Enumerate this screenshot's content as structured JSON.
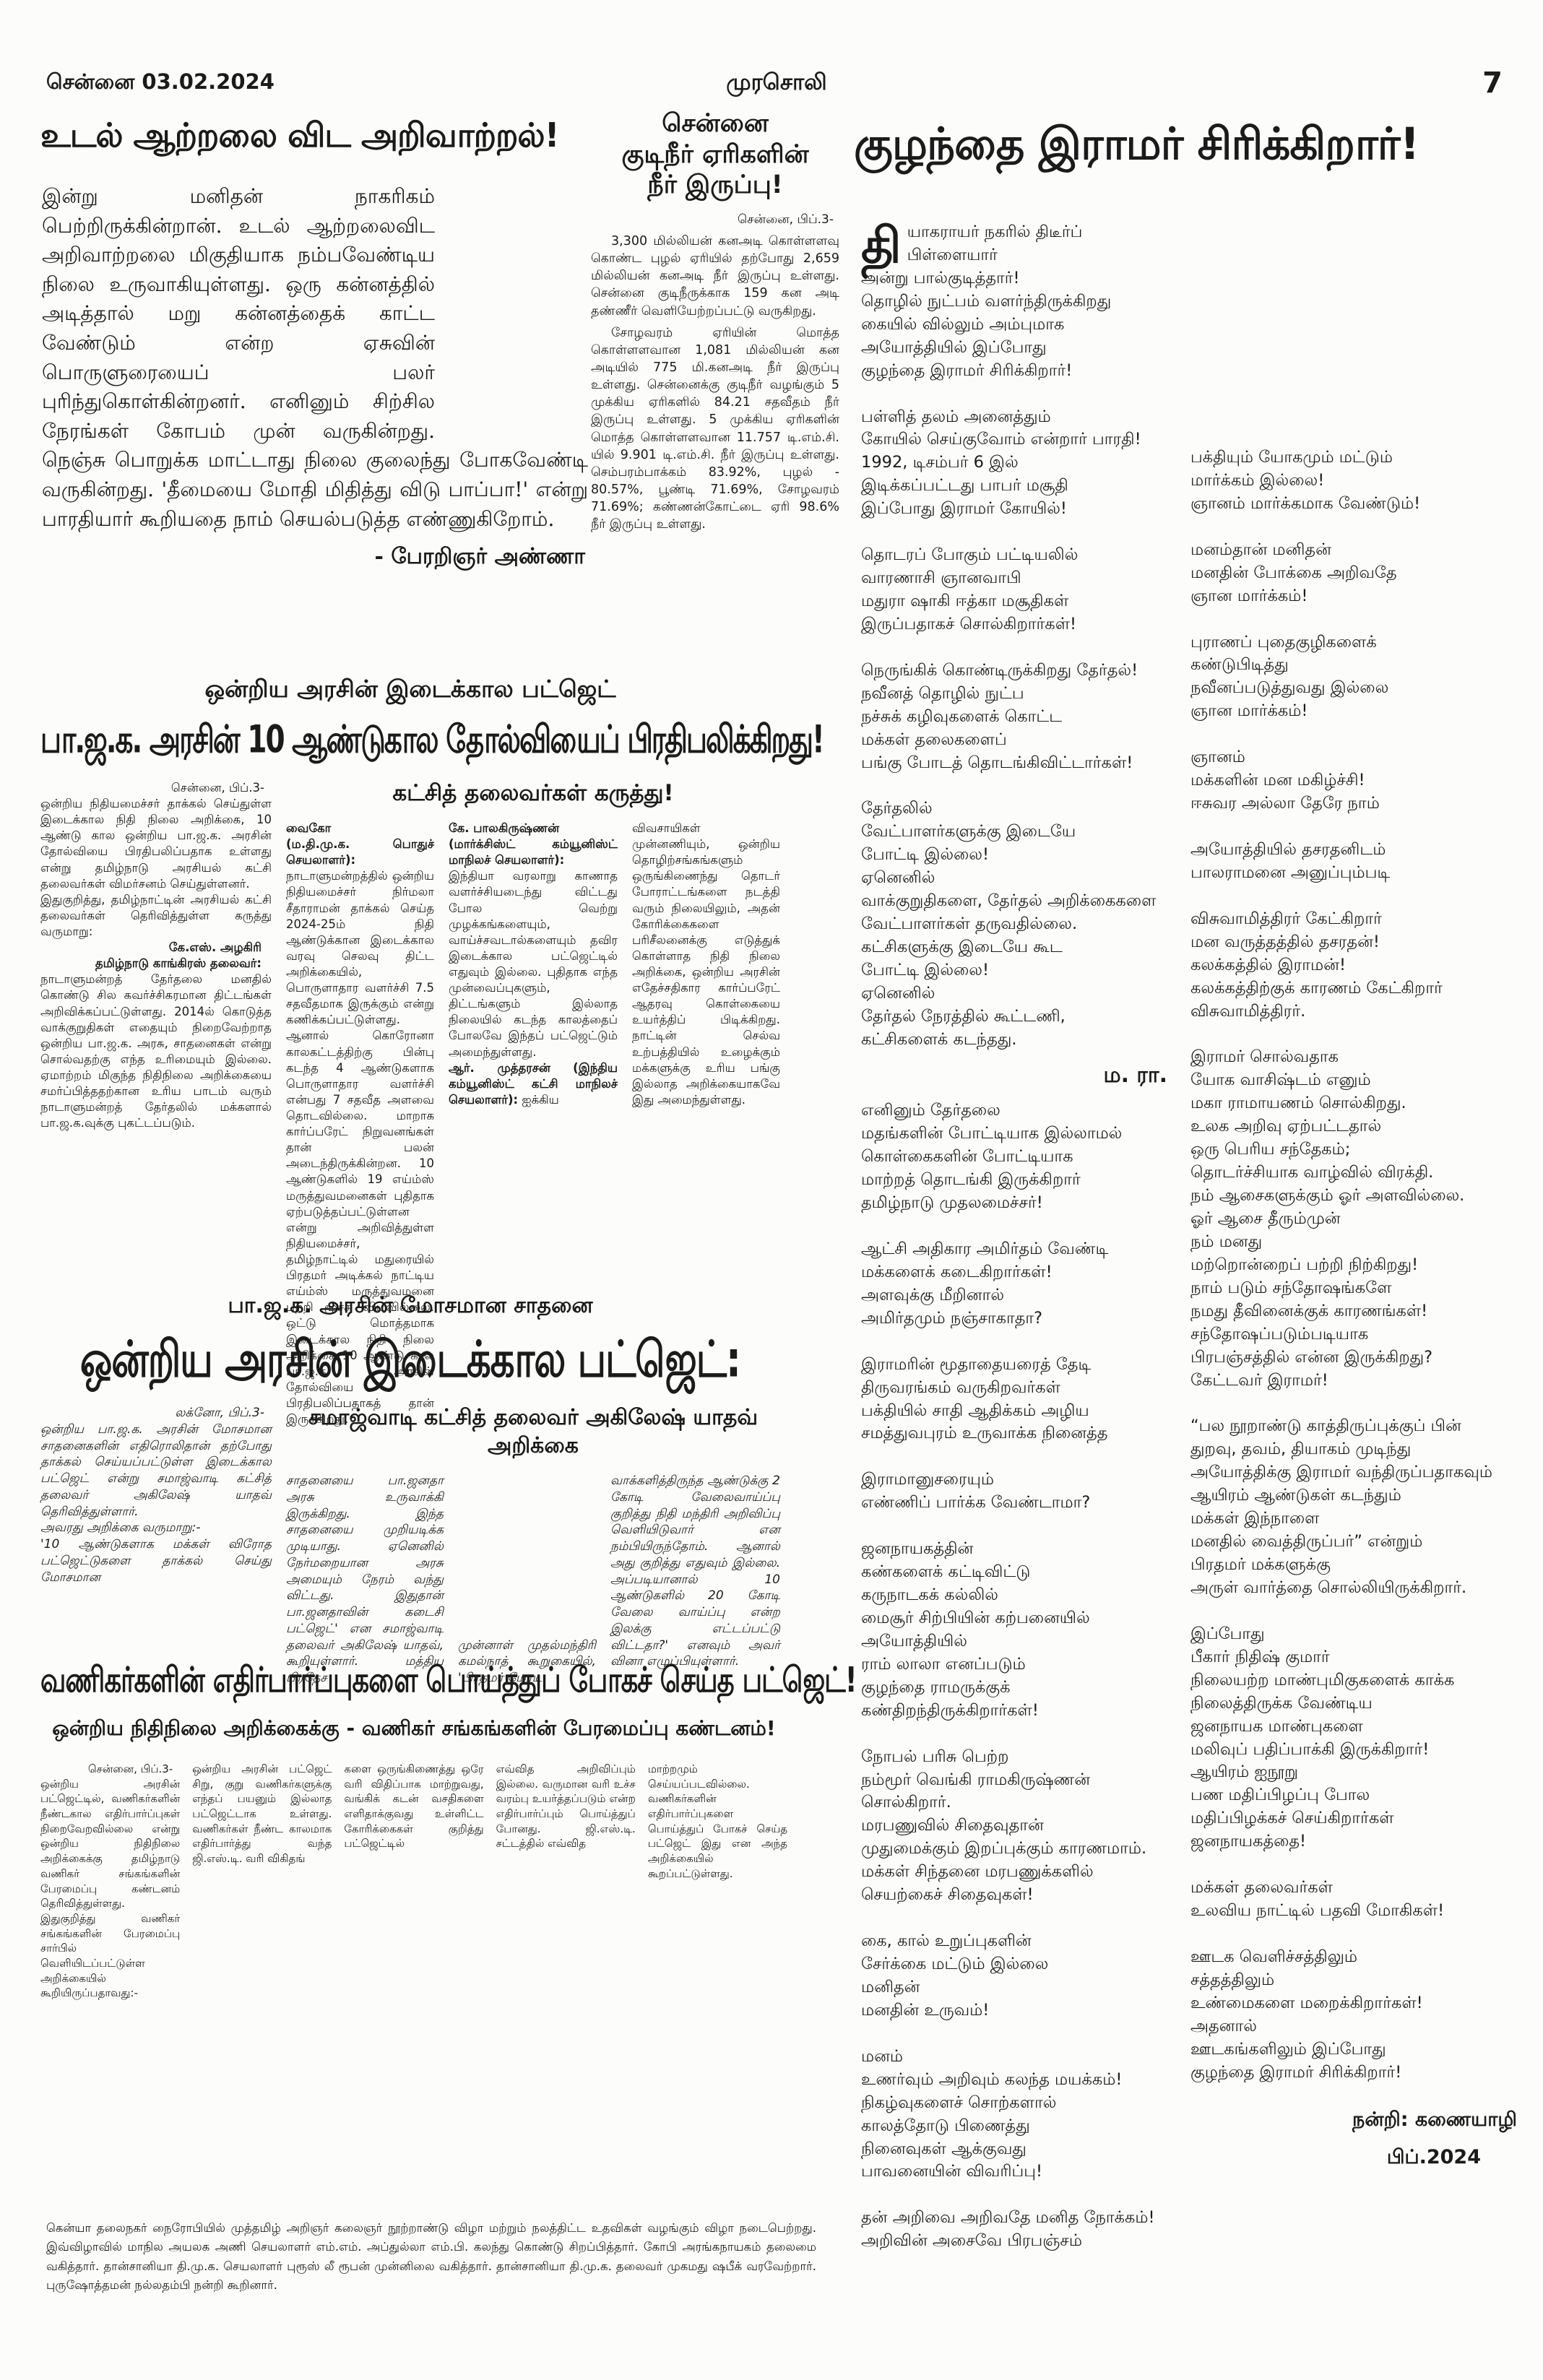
{
  "header": {
    "city_date": "சென்னை  03.02.2024",
    "masthead": "முரசொலி",
    "page_number": "7"
  },
  "editorial": {
    "headline": "உடல் ஆற்றலை விட அறிவாற்றல்!",
    "body": "இன்று மனிதன் நாகரிகம் பெற்றிருக்கின்றான். உடல் ஆற்றலைவிட அறிவாற்றலை மிகுதியாக நம்பவேண்டிய நிலை உருவாகியுள்ளது. ஒரு கன்னத்தில் அடித்தால் மறு கன்னத்தைக் காட்ட வேண்டும் என்ற ஏசுவின் பொருளுரையைப் பலர் புரிந்துகொள்கின்றனர். எனினும் சிற்சில நேரங்கள் கோபம் முன் வருகின்றது. நெஞ்சு பொறுக்க மாட்டாது நிலை குலைந்து போகவேண்டி வருகின்றது. 'தீமையை மோதி மிதித்து விடு பாப்பா!' என்று பாரதியார் கூறியதை நாம் செயல்படுத்த எண்ணுகிறோம்.",
    "byline": "- பேரறிஞர் அண்ணா"
  },
  "water": {
    "headline": "சென்னை\nகுடிநீர் ஏரிகளின்\nநீர் இருப்பு!",
    "dateline": "சென்னை, பிப்.3-",
    "para1": "3,300 மில்லியன் கனஅடி கொள்ளளவு கொண்ட புழல் ஏரியில் தற்போது 2,659 மில்லியன் கனஅடி நீர் இருப்பு உள்ளது. சென்னை குடிநீருக்காக 159 கன அடி தண்ணீர் வெளியேற்றப்பட்டு வருகிறது.",
    "para2": "சோழவரம் ஏரியின் மொத்த கொள்ளளவான 1,081 மில்லியன் கன அடியில் 775 மி.கனஅடி நீர் இருப்பு உள்ளது. சென்னைக்கு குடிநீர் வழங்கும் 5 முக்கிய ஏரிகளில் 84.21 சதவீதம் நீர் இருப்பு உள்ளது. 5 முக்கிய ஏரிகளின் மொத்த கொள்ளளவான 11.757 டி.எம்.சி. யில் 9.901 டி.எம்.சி. நீர் இருப்பு உள்ளது. செம்பரம்பாக்கம் 83.92%, புழல் - 80.57%, பூண்டி 71.69%, சோழவரம் 71.69%; கண்ணன்கோட்டை ஏரி 98.6% நீர் இருப்பு உள்ளது."
  },
  "poem": {
    "headline": "குழந்தை இராமர் சிரிக்கிறார்!",
    "col1_drop": "தி",
    "col1_a": "யாகராயர் நகரில் திடீர்ப் பிள்ளையார்\nஅன்று பால்குடித்தார்!\nதொழில் நுட்பம் வளர்ந்திருக்கிறது\nகையில் வில்லும் அம்புமாக\nஅயோத்தியில் இப்போது\nகுழந்தை இராமர் சிரிக்கிறார்!\n\nபள்ளித் தலம் அனைத்தும்\nகோயில் செய்குவோம் என்றார் பாரதி!\n1992, டிசம்பர் 6 இல்\nஇடிக்கப்பட்டது பாபர் மசூதி\nஇப்போது இராமர் கோயில்!\n\nதொடரப் போகும் பட்டியலில்\nவாரணாசி ஞானவாபி\nமதுரா ஷாகி ஈத்கா மசூதிகள்\nஇருப்பதாகச் சொல்கிறார்கள்!\n\nநெருங்கிக் கொண்டிருக்கிறது தேர்தல்!\nநவீனத் தொழில் நுட்ப\nநச்சுக் கழிவுகளைக் கொட்ட\nமக்கள் தலைகளைப்\nபங்கு போடத் தொடங்கிவிட்டார்கள்!\n\nதேர்தலில்\nவேட்பாளர்களுக்கு இடையே\nபோட்டி இல்லை!\nஏனெனில்\nவாக்குறுதிகளை, தேர்தல் அறிக்கைகளை\nவேட்பாளர்கள் தருவதில்லை.\nகட்சிகளுக்கு இடையே கூட\nபோட்டி இல்லை!\nஏனெனில்\nதேர்தல் நேரத்தில் கூட்டணி,\nகட்சிகளைக் கடந்தது.",
    "author_initials": "ம. ரா.",
    "col1_b": "எனினும் தேர்தலை\nமதங்களின் போட்டியாக இல்லாமல்\nகொள்கைகளின் போட்டியாக\nமாற்றத் தொடங்கி இருக்கிறார்\nதமிழ்நாடு முதலமைச்சர்!\n\nஆட்சி அதிகார அமிர்தம் வேண்டி\nமக்களைக் கடைகிறார்கள்!\nஅளவுக்கு மீறினால்\nஅமிர்தமும் நஞ்சாகாதா?\n\nஇராமரின் மூதாதையரைத் தேடி\nதிருவரங்கம் வருகிறவர்கள்\nபக்தியில் சாதி ஆதிக்கம் அழிய\nசமத்துவபுரம் உருவாக்க நினைத்த\n\nஇராமானுசரையும்\nஎண்ணிப் பார்க்க வேண்டாமா?\n\nஜனநாயகத்தின்\nகண்களைக் கட்டிவிட்டு\nகருநாடகக் கல்லில்\nமைசூர் சிற்பியின் கற்பனையில்\nஅயோத்தியில்\nராம் லாலா எனப்படும்\nகுழந்தை ராமருக்குக்\nகண்திறந்திருக்கிறார்கள்!\n\nநோபல் பரிசு பெற்ற\nநம்மூர் வெங்கி ராமகிருஷ்ணன்\nசொல்கிறார்.\nமரபணுவில் சிதைவுதான்\nமுதுமைக்கும் இறப்புக்கும் காரணமாம்.\nமக்கள் சிந்தனை மரபணுக்களில்\nசெயற்கைச் சிதைவுகள்!\n\nகை, கால் உறுப்புகளின்\nசேர்க்கை மட்டும் இல்லை\nமனிதன்\nமனதின் உருவம்!\n\nமனம்\nஉணர்வும் அறிவும் கலந்த மயக்கம்!\nநிகழ்வுகளைச் சொற்களால்\nகாலத்தோடு பிணைத்து\nநினைவுகள் ஆக்குவது\nபாவனையின் விவரிப்பு!\n\nதன் அறிவை அறிவதே மனித நோக்கம்!\nஅறிவின் அசைவே பிரபஞ்சம்",
    "col2": "பக்தியும் யோகமும் மட்டும்\nமார்க்கம் இல்லை!\nஞானம் மார்க்கமாக வேண்டும்!\n\nமனம்தான் மனிதன்\nமனதின் போக்கை அறிவதே\nஞான மார்க்கம்!\n\nபுராணப் புதைகுழிகளைக்\nகண்டுபிடித்து\nநவீனப்படுத்துவது இல்லை\nஞான மார்க்கம்!\n\nஞானம்\nமக்களின் மன மகிழ்ச்சி!\nஈசுவர அல்லா தேரே நாம்\n\nஅயோத்தியில் தசரதனிடம்\nபாலராமனை அனுப்பும்படி\n\nவிசுவாமித்திரர் கேட்கிறார்\nமன வருத்தத்தில் தசரதன்!\nகலக்கத்தில் இராமன்!\nகலக்கத்திற்குக் காரணம் கேட்கிறார்\nவிசுவாமித்திரர்.\n\nஇராமர் சொல்வதாக\nயோக வாசிஷ்டம் எனும்\nமகா ராமாயணம் சொல்கிறது.\nஉலக அறிவு ஏற்பட்டதால்\nஒரு பெரிய சந்தேகம்;\nதொடர்ச்சியாக வாழ்வில் விரக்தி.\nநம் ஆசைகளுக்கும் ஓர் அளவில்லை.\nஓர் ஆசை தீரும்முன்\nநம் மனது\nமற்றொன்றைப் பற்றி நிற்கிறது!\nநாம் படும் சந்தோஷங்களே\nநமது தீவினைக்குக் காரணங்கள்!\nசந்தோஷப்படும்படியாக\nபிரபஞ்சத்தில் என்ன இருக்கிறது?\nகேட்டவர் இராமர்!\n\n“பல நூறாண்டு காத்திருப்புக்குப் பின்\nதுறவு, தவம், தியாகம் முடிந்து\nஅயோத்திக்கு இராமர் வந்திருப்பதாகவும்\nஆயிரம் ஆண்டுகள் கடந்தும்\nமக்கள் இந்நாளை\nமனதில் வைத்திருப்பர்” என்றும்\nபிரதமர் மக்களுக்கு\nஅருள் வார்த்தை சொல்லியிருக்கிறார்.\n\nஇப்போது\nபீகார் நிதிஷ் குமார்\nநிலையற்ற மாண்புமிகுகளைக் காக்க\nநிலைத்திருக்க வேண்டிய\nஜனநாயக மாண்புகளை\nமலிவுப் பதிப்பாக்கி இருக்கிறார்!\nஆயிரம் ஐநூறு\nபண மதிப்பிழப்பு போல\nமதிப்பிழக்கச் செய்கிறார்கள்\nஜனநாயகத்தை!\n\nமக்கள் தலைவர்கள்\nஉலவிய நாட்டில் பதவி மோகிகள்!\n\nஊடக வெளிச்சத்திலும்\nசத்தத்திலும்\nஉண்மைகளை மறைக்கிறார்கள்!\nஅதனால்\nஊடகங்களிலும் இப்போது\nகுழந்தை இராமர் சிரிக்கிறார்!",
    "credit": "நன்றி: கணையாழி",
    "credit_date": "பிப்.2024"
  },
  "budget": {
    "kicker": "ஒன்றிய அரசின் இடைக்கால பட்ஜெட்",
    "headline": "பா.ஜ.க. அரசின் 10 ஆண்டுகால தோல்வியைப் பிரதிபலிக்கிறது!",
    "subhead": "கட்சித் தலைவர்கள் கருத்து!",
    "dateline": "சென்னை, பிப்.3-",
    "intro": "ஒன்றிய நிதியமைச்சர் தாக்கல் செய்துள்ள இடைக்கால நிதி நிலை அறிக்கை, 10 ஆண்டு கால ஒன்றிய பா.ஜ.க. அரசின் தோல்வியை பிரதிபலிப்பதாக உள்ளது என்று தமிழ்நாடு அரசியல் கட்சி தலைவர்கள் விமர்சனம் செய்துள்ளனர்.\nஇதுகுறித்து, தமிழ்நாட்டின் அரசியல் கட்சி தலைவர்கள் தெரிவித்துள்ள கருத்து வருமாறு:",
    "leader1_name": "கே.எஸ். அழகிரி",
    "leader1_role": "தமிழ்நாடு காங்கிரஸ் தலைவர்:",
    "leader1_text": "நாடாளுமன்றத் தேர்தலை மனதில் கொண்டு சில கவர்ச்சிகரமான திட்டங்கள் அறிவிக்கப்பட்டுள்ளது. 2014ல் கொடுத்த வாக்குறுதிகள் எதையும் நிறைவேற்றாத ஒன்றிய பா.ஜ.க. அரசு, சாதனைகள் என்று சொல்வதற்கு எந்த உரிமையும் இல்லை. ஏமாற்றம் மிகுந்த நிதிநிலை அறிக்கையை சமர்ப்பித்ததற்கான உரிய பாடம் வரும் நாடாளுமன்றத் தேர்தலில் மக்களால் பா.ஜ.க.வுக்கு புகட்டப்படும்.",
    "leader2_name": "வைகோ",
    "leader2_role": "(ம.தி.மு.க. பொதுச் செயலாளர்):",
    "leader2_text": "நாடாளுமன்றத்தில் ஒன்றிய நிதியமைச்சர் நிர்மலா சீதாராமன் தாக்கல் செய்த 2024-25ம் நிதி ஆண்டுக்கான இடைக்கால வரவு செலவு திட்ட அறிக்கையில், பொருளாதார வளர்ச்சி 7.5 சதவீதமாக இருக்கும் என்று கணிக்கப்பட்டுள்ளது. ஆனால் கொரோனா காலகட்டத்திற்கு பின்பு கடந்த 4 ஆண்டுகளாக பொருளாதார வளர்ச்சி என்பது 7 சதவீத அளவை தொடவில்லை. மாறாக கார்ப்பரேட் நிறுவனங்கள் தான் பலன் அடைந்திருக்கின்றன. 10 ஆண்டுகளில் 19 எய்ம்ஸ் மருத்துவமனைகள் புதிதாக ஏற்படுத்தப்பட்டுள்ளன என்று அறிவித்துள்ள நிதியமைச்சர், தமிழ்நாட்டில் மதுரையில் பிரதமர் அடிக்கல் நாட்டிய எய்ம்ஸ் மருத்துவமனை பற்றி மூச்சு விடவில்லை. ஒட்டு மொத்தமாக இடைக்கால நிதி நிலை அறிக்கை 10 ஆண்டு கால பா.ஜ.க. அரசின் தோல்வியை பிரதிபலிப்பதாகத் தான் இருக்கிறது.",
    "leader3_name": "கே. பாலகிருஷ்ணன்",
    "leader3_role": "(மார்க்சிஸ்ட் கம்யூனிஸ்ட் மாநிலச் செயலாளர்):",
    "leader3_text": "இந்தியா வரலாறு காணாத வளர்ச்சியடைந்து விட்டது போல வெற்று முழக்கங்களையும், வாய்ச்சவடால்களையும் தவிர இடைக்கால பட்ஜெட்டில் எதுவும் இல்லை. புதிதாக எந்த முன்வைப்புகளும், திட்டங்களும் இல்லாத நிலையில் கடந்த காலத்தைப் போலவே இந்தப் பட்ஜெட்டும் அமைந்துள்ளது.",
    "leader4_name": "ஆர். முத்தரசன்",
    "leader4_role": "(இந்திய கம்யூனிஸ்ட் கட்சி மாநிலச் செயலாளர்):",
    "leader4_lead": "ஐக்கிய",
    "col4_text": "விவசாயிகள் முன்னணியும், ஒன்றிய தொழிற்சங்கங்களும் ஒருங்கிணைந்து தொடர் போராட்டங்களை நடத்தி வரும் நிலையிலும், அதன் கோரிக்கைகளை பரிசீலனைக்கு எடுத்துக் கொள்ளாத நிதி நிலை அறிக்கை, ஒன்றிய அரசின் எதேச்சதிகார கார்ப்பரேட் ஆதரவு கொள்கையை உயர்த்திப் பிடிக்கிறது. நாட்டின் செல்வ உற்பத்தியில் உழைக்கும் மக்களுக்கு உரிய பங்கு இல்லாத அறிக்கையாகவே இது அமைந்துள்ளது."
  },
  "akhilesh": {
    "kicker": "பா.ஜ.க. அரசின் மோசமான சாதனை",
    "headline": "ஒன்றிய அரசின் இடைக்கால பட்ஜெட்:",
    "subhead": "சமாஜ்வாடி கட்சித் தலைவர் அகிலேஷ் யாதவ் அறிக்கை",
    "dateline": "லக்னோ, பிப்.3-",
    "col1": "ஒன்றிய பா.ஜ.க. அரசின் மோசமான சாதனைகளின் எதிரொலிதான் தற்போது தாக்கல் செய்யப்பட்டுள்ள இடைக்கால பட்ஜெட் என்று சமாஜ்வாடி கட்சித் தலைவர் அகிலேஷ் யாதவ் தெரிவித்துள்ளார்.\nஅவரது அறிக்கை வருமாறு:-\n'10 ஆண்டுகளாக மக்கள் விரோத பட்ஜெட்டுகளை தாக்கல் செய்து மோசமான",
    "col2": "சாதனையை பா.ஜனதா அரசு உருவாக்கி இருக்கிறது.\nஇந்த சாதனையை முறியடிக்க முடியாது. ஏனெனில் நேர்மறையான அரசு அமையும் நேரம் வந்து விட்டது. இதுதான் பா.ஜனதாவின் கடைசி பட்ஜெட்' என சமாஜ்வாடி தலைவர் அகிலேஷ் யாதவ், கூறியுள்ளார்.\nமத்திய பிரதேச",
    "col3": "முன்னாள் முதல்மந்திரி கமல்நாத் கூறுகையில், 'பிரதமர் மோடி",
    "col4": "வாக்களித்திருந்த ஆண்டுக்கு 2 கோடி வேலைவாய்ப்பு குறித்து நிதி மந்திரி அறிவிப்பு வெளியிடுவார் என நம்பியிருந்தோம். ஆனால் அது குறித்து எதுவும் இல்லை. அப்படியானால் 10 ஆண்டுகளில் 20 கோடி வேலை வாய்ப்பு என்ற இலக்கு எட்டப்பட்டு விட்டதா?' எனவும் அவர் வினா எழுப்பியுள்ளார்."
  },
  "traders": {
    "headline": "வணிகர்களின் எதிர்பார்ப்புகளை பொய்த்துப் போகச் செய்த பட்ஜெட்!",
    "subhead": "ஒன்றிய நிதிநிலை அறிக்கைக்கு - வணிகர் சங்கங்களின் பேரமைப்பு கண்டனம்!",
    "dateline": "சென்னை, பிப்.3-",
    "col1": "ஒன்றிய அரசின் பட்ஜெட்டில், வணிகர்களின் நீண்டகால எதிர்பார்ப்புகள் நிறைவேறவில்லை என்று ஒன்றிய நிதிநிலை அறிக்கைக்கு தமிழ்நாடு வணிகர் சங்கங்களின் பேரமைப்பு கண்டனம் தெரிவித்துள்ளது.\nஇதுகுறித்து வணிகர் சங்கங்களின் பேரமைப்பு சார்பில் வெளியிடப்பட்டுள்ள அறிக்கையில் கூறியிருப்பதாவது:-",
    "col2": "ஒன்றிய அரசின் பட்ஜெட் சிறு, குறு வணிகர்களுக்கு எந்தப் பயனும் இல்லாத பட்ஜெட்டாக உள்ளது. வணிகர்கள் நீண்ட காலமாக எதிர்பார்த்து வந்த ஜி.எஸ்.டி. வரி விகிதங்",
    "col3": "களை ஒருங்கிணைத்து ஒரே வரி விதிப்பாக மாற்றுவது, வங்கிக் கடன் வசதிகளை எளிதாக்குவது உள்ளிட்ட கோரிக்கைகள் குறித்து பட்ஜெட்டில்",
    "col4": "எவ்வித அறிவிப்பும் இல்லை. வருமான வரி உச்ச வரம்பு உயர்த்தப்படும் என்ற எதிர்பார்ப்பும் பொய்த்துப் போனது. ஜி.எஸ்.டி. சட்டத்தில் எவ்வித",
    "col5": "மாற்றமும் செய்யப்படவில்லை. வணிகர்களின் எதிர்பார்ப்புகளை பொய்த்துப் போகச் செய்த பட்ஜெட் இது என அந்த அறிக்கையில் கூறப்பட்டுள்ளது."
  },
  "caption": {
    "text": "கென்யா தலைநகர் நைரோபியில் முத்தமிழ் அறிஞர் கலைஞர் நூற்றாண்டு விழா மற்றும் நலத்திட்ட உதவிகள் வழங்கும் விழா நடைபெற்றது. இவ்விழாவில் மாநில அயலக அணி செயலாளர் எம்.எம். அப்துல்லா எம்.பி. கலந்து கொண்டு சிறப்பித்தார். கோபி அரங்கநாயகம் தலைமை வகித்தார். தான்சானியா தி.மு.க. செயலாளர் புரூஸ் லீ ரூபன் முன்னிலை வகித்தார். தான்சானியா தி.மு.க. தலைவர் முகமது ஷபீக் வரவேற்றார். புருஷோத்தமன் நல்லதம்பி நன்றி கூறினார்."
  }
}
